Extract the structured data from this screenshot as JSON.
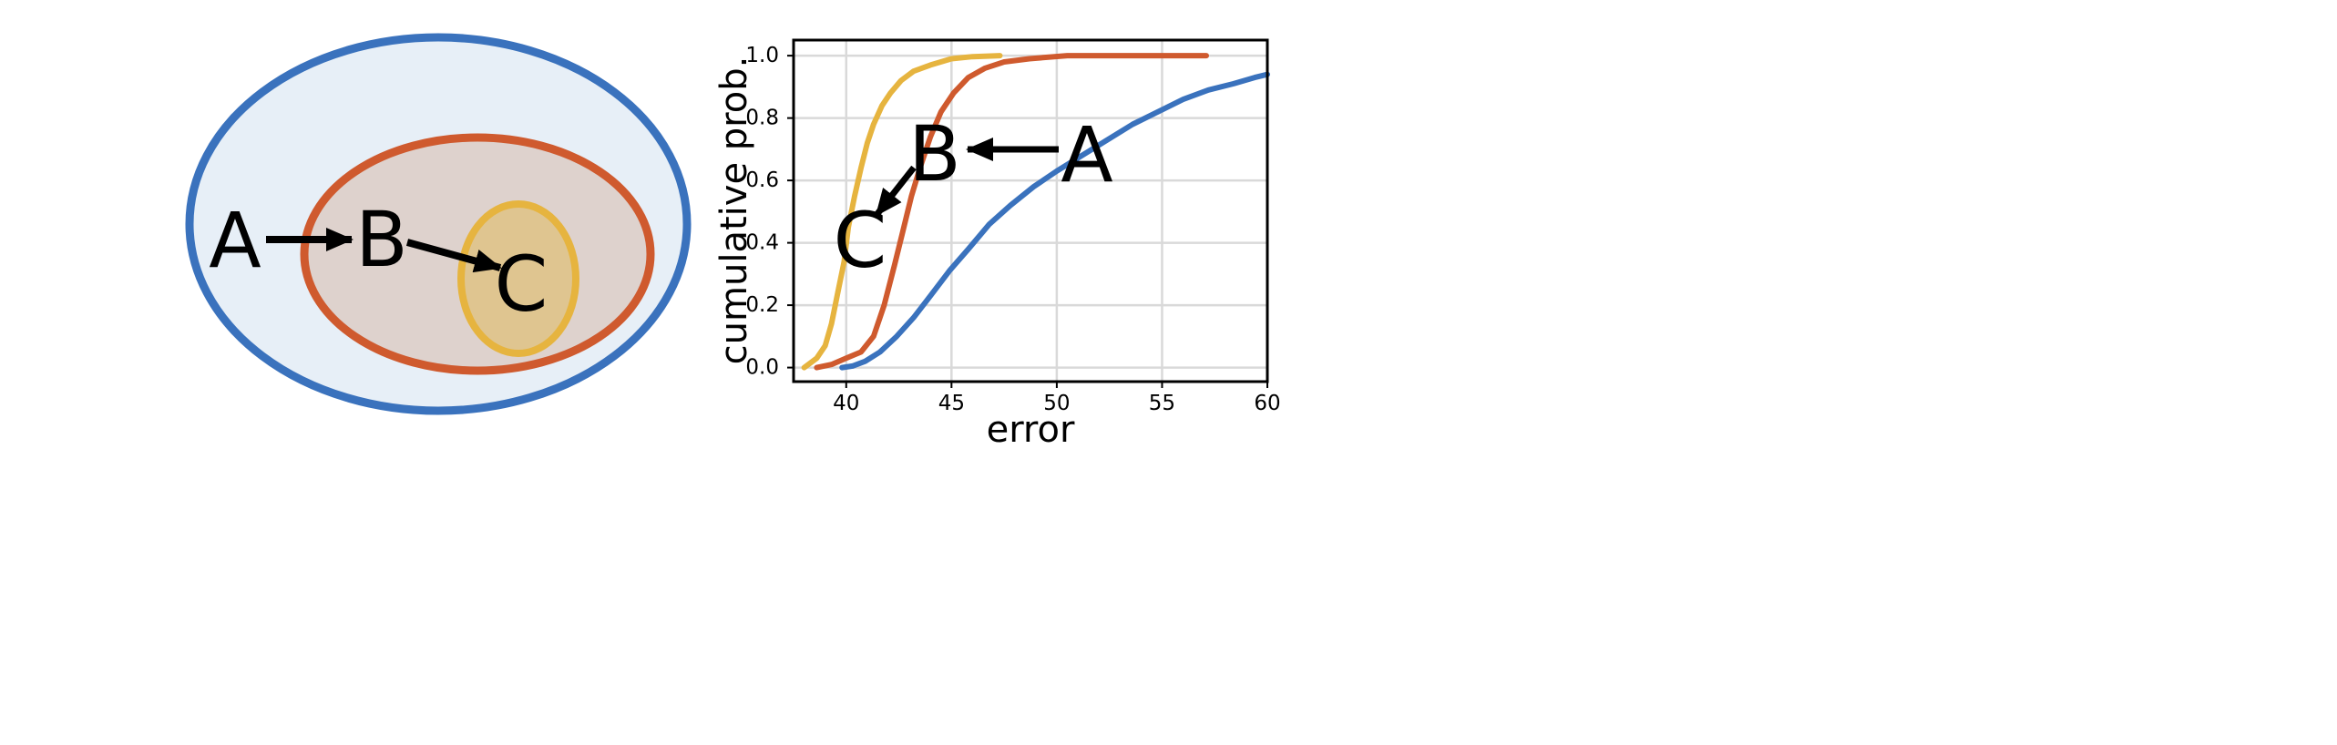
{
  "diagram": {
    "labels": {
      "a": "A",
      "b": "B",
      "c": "C"
    },
    "colors": {
      "outer_stroke": "#3a72bd",
      "outer_fill": "#e7eff7",
      "middle_stroke": "#cf5a2e",
      "middle_fill": "#ded2cd",
      "inner_stroke": "#e6b43f",
      "inner_fill": "#dfc590",
      "arrow": "#000000"
    }
  },
  "chart_data": {
    "type": "line",
    "xlabel": "error",
    "ylabel": "cumulative prob.",
    "xlim": [
      37.5,
      60
    ],
    "ylim": [
      -0.045,
      1.05
    ],
    "xticks": [
      40,
      45,
      50,
      55,
      60
    ],
    "yticks": [
      0.0,
      0.2,
      0.4,
      0.6,
      0.8,
      1.0
    ],
    "xtick_labels": [
      "40",
      "45",
      "50",
      "55",
      "60"
    ],
    "ytick_labels": [
      "0.0",
      "0.2",
      "0.4",
      "0.6",
      "0.8",
      "1.0"
    ],
    "grid": true,
    "series": [
      {
        "name": "C",
        "color": "#e6b43f",
        "x": [
          38.0,
          38.6,
          39.0,
          39.3,
          39.6,
          39.9,
          40.1,
          40.4,
          40.7,
          41.0,
          41.3,
          41.7,
          42.1,
          42.6,
          43.2,
          44.0,
          45.0,
          46.0,
          47.3
        ],
        "y": [
          0.0,
          0.03,
          0.07,
          0.14,
          0.24,
          0.34,
          0.45,
          0.55,
          0.64,
          0.72,
          0.78,
          0.84,
          0.88,
          0.92,
          0.95,
          0.97,
          0.99,
          0.997,
          1.0
        ]
      },
      {
        "name": "B",
        "color": "#cf5a2e",
        "x": [
          38.6,
          39.3,
          40.0,
          40.7,
          41.3,
          41.8,
          42.3,
          42.7,
          43.1,
          43.5,
          44.0,
          44.5,
          45.1,
          45.8,
          46.6,
          47.5,
          48.7,
          50.5,
          57.1
        ],
        "y": [
          0.0,
          0.01,
          0.03,
          0.05,
          0.1,
          0.2,
          0.33,
          0.44,
          0.55,
          0.64,
          0.74,
          0.82,
          0.88,
          0.93,
          0.96,
          0.98,
          0.99,
          1.0,
          1.0
        ]
      },
      {
        "name": "A",
        "color": "#3a72bd",
        "x": [
          39.8,
          40.3,
          40.9,
          41.6,
          42.4,
          43.2,
          44.0,
          44.9,
          45.8,
          46.8,
          47.8,
          48.9,
          50.0,
          51.2,
          52.4,
          53.6,
          54.8,
          56.0,
          57.2,
          58.4,
          59.4,
          60.0
        ],
        "y": [
          0.0,
          0.005,
          0.02,
          0.05,
          0.1,
          0.16,
          0.23,
          0.31,
          0.38,
          0.46,
          0.52,
          0.58,
          0.63,
          0.68,
          0.73,
          0.78,
          0.82,
          0.86,
          0.89,
          0.91,
          0.93,
          0.94
        ]
      }
    ],
    "annotations": [
      {
        "label": "A",
        "text": "A"
      },
      {
        "label": "B",
        "text": "B"
      },
      {
        "label": "C",
        "text": "C"
      }
    ]
  }
}
